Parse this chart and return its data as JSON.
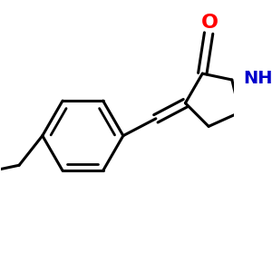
{
  "background": "#ffffff",
  "bond_color": "#000000",
  "O_color": "#ff0000",
  "N_color": "#0000cc",
  "lw": 2.2,
  "inner_lw": 2.0,
  "fs_O": 16,
  "fs_NH": 14
}
